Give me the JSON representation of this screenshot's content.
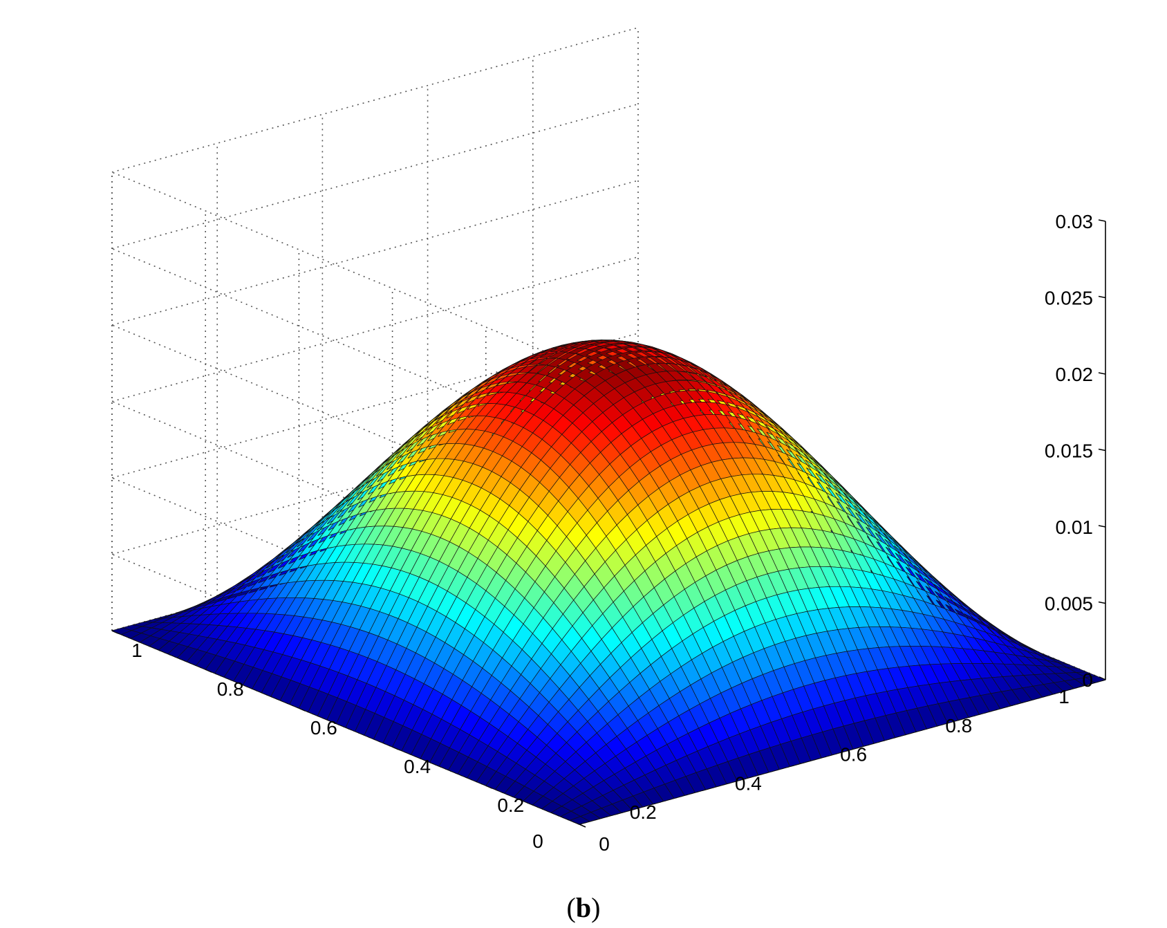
{
  "chart_data": {
    "type": "surface",
    "title": "",
    "xlabel": "",
    "ylabel": "",
    "zlabel": "",
    "caption": {
      "open": "(",
      "label": "b",
      "close": ")"
    },
    "x_ticks": [
      "0",
      "0.2",
      "0.4",
      "0.6",
      "0.8",
      "1"
    ],
    "y_ticks": [
      "0",
      "0.2",
      "0.4",
      "0.6",
      "0.8",
      "1"
    ],
    "z_ticks": [
      "0",
      "0.005",
      "0.01",
      "0.015",
      "0.02",
      "0.025",
      "0.03"
    ],
    "xlim": [
      0,
      1
    ],
    "ylim": [
      0,
      1
    ],
    "zlim": [
      0,
      0.03
    ],
    "grid": true,
    "colormap": "jet",
    "surface": {
      "function": "z = 0.02 * sin(pi*x) * sin(pi*y)",
      "peak": 0.02,
      "x_range": [
        0,
        1
      ],
      "y_range": [
        0,
        1
      ]
    }
  }
}
